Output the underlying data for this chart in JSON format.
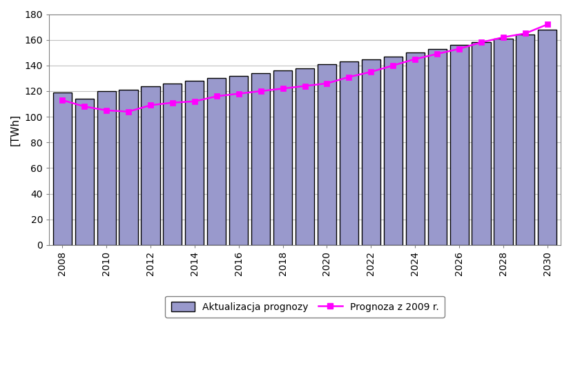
{
  "years": [
    2008,
    2009,
    2010,
    2011,
    2012,
    2013,
    2014,
    2015,
    2016,
    2017,
    2018,
    2019,
    2020,
    2021,
    2022,
    2023,
    2024,
    2025,
    2026,
    2027,
    2028,
    2029,
    2030
  ],
  "bar_values": [
    119,
    114,
    120,
    121,
    124,
    126,
    128,
    130,
    132,
    134,
    136,
    138,
    141,
    143,
    145,
    147,
    150,
    153,
    156,
    158,
    161,
    164,
    168
  ],
  "line_values": [
    113,
    108,
    105,
    104,
    109,
    111,
    112,
    116,
    118,
    120,
    122,
    124,
    126,
    131,
    135,
    140,
    145,
    149,
    153,
    158,
    162,
    165,
    172
  ],
  "bar_color": "#9999CC",
  "bar_edge_color": "#000000",
  "line_color": "#FF00FF",
  "line_marker": "s",
  "line_marker_color": "#FF00FF",
  "ylabel": "[TWh]",
  "ylim": [
    0,
    180
  ],
  "yticks": [
    0,
    20,
    40,
    60,
    80,
    100,
    120,
    140,
    160,
    180
  ],
  "legend_bar_label": "Aktualizacja prognozy",
  "legend_line_label": "Prognoza z 2009 r.",
  "background_color": "#FFFFFF",
  "plot_bg_color": "#FFFFFF",
  "grid_color": "#C0C0C0",
  "axis_fontsize": 10,
  "legend_fontsize": 10,
  "bar_width": 0.85
}
